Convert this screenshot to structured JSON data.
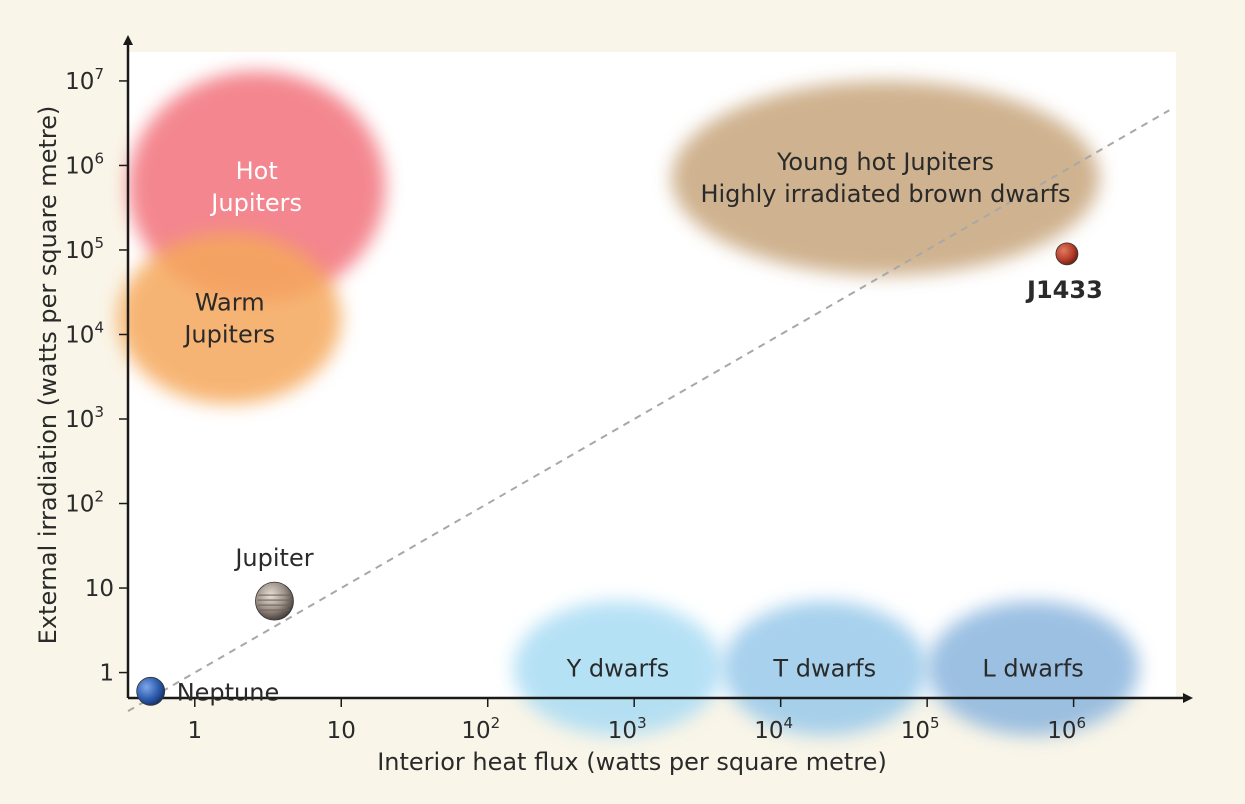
{
  "chart_data": {
    "type": "scatter",
    "x_scale": "log",
    "y_scale": "log",
    "xlabel": "Interior heat flux (watts per square metre)",
    "ylabel": "External irradiation (watts per square metre)",
    "x_ticks": [
      {
        "value": 1,
        "base": "1",
        "exp": ""
      },
      {
        "value": 10,
        "base": "10",
        "exp": ""
      },
      {
        "value": 100,
        "base": "10",
        "exp": "2"
      },
      {
        "value": 1000,
        "base": "10",
        "exp": "3"
      },
      {
        "value": 10000,
        "base": "10",
        "exp": "4"
      },
      {
        "value": 100000,
        "base": "10",
        "exp": "5"
      },
      {
        "value": 1000000,
        "base": "10",
        "exp": "6"
      }
    ],
    "y_ticks": [
      {
        "value": 1,
        "base": "1",
        "exp": ""
      },
      {
        "value": 10,
        "base": "10",
        "exp": ""
      },
      {
        "value": 100,
        "base": "10",
        "exp": "2"
      },
      {
        "value": 1000,
        "base": "10",
        "exp": "3"
      },
      {
        "value": 10000,
        "base": "10",
        "exp": "4"
      },
      {
        "value": 100000,
        "base": "10",
        "exp": "5"
      },
      {
        "value": 1000000,
        "base": "10",
        "exp": "6"
      },
      {
        "value": 10000000,
        "base": "10",
        "exp": "7"
      }
    ],
    "xlim": [
      0.35,
      5000000
    ],
    "ylim": [
      0.5,
      22000000
    ],
    "regions": [
      {
        "name": "hot-jupiters",
        "lines": [
          "Hot",
          "Jupiters"
        ],
        "color": "#f2727c",
        "text_color": "#ffffff",
        "x_range": [
          0.35,
          20
        ],
        "y_range": [
          24000,
          13000000
        ]
      },
      {
        "name": "warm-jupiters",
        "lines": [
          "Warm",
          "Jupiters"
        ],
        "color": "#f5a85c",
        "text_color": "#2a2a2a",
        "x_range": [
          0.3,
          10
        ],
        "y_range": [
          1500,
          160000
        ]
      },
      {
        "name": "young-hot-jupiters",
        "lines": [
          "Young hot Jupiters",
          "Highly irradiated brown dwarfs"
        ],
        "color": "#c7a57c",
        "text_color": "#2a2a2a",
        "x_range": [
          1800,
          1500000
        ],
        "y_range": [
          50000,
          10000000
        ]
      },
      {
        "name": "y-dwarfs",
        "lines": [
          "Y dwarfs"
        ],
        "color": "#a9dcf4",
        "text_color": "#2a2a2a",
        "x_range": [
          150,
          4000
        ],
        "y_range": [
          0.18,
          7
        ]
      },
      {
        "name": "t-dwarfs",
        "lines": [
          "T dwarfs"
        ],
        "color": "#98c9ea",
        "text_color": "#2a2a2a",
        "x_range": [
          4000,
          100000
        ],
        "y_range": [
          0.18,
          7
        ]
      },
      {
        "name": "l-dwarfs",
        "lines": [
          "L dwarfs"
        ],
        "color": "#8bb6de",
        "text_color": "#2a2a2a",
        "x_range": [
          100000,
          2800000
        ],
        "y_range": [
          0.18,
          7
        ]
      }
    ],
    "points": [
      {
        "name": "neptune",
        "label": "Neptune",
        "x": 0.5,
        "y": 0.6,
        "color": "#2f5fb0",
        "label_side": "right",
        "bold": false
      },
      {
        "name": "jupiter",
        "label": "Jupiter",
        "x": 3.5,
        "y": 7,
        "color": "#8a7f78",
        "label_side": "top",
        "bold": false
      },
      {
        "name": "j1433",
        "label": "J1433",
        "x": 900000,
        "y": 90000,
        "color": "#b8402c",
        "label_side": "bottom",
        "bold": true
      }
    ],
    "reference_line": {
      "style": "dashed",
      "from": [
        0.35,
        0.35
      ],
      "to": [
        4500000,
        4500000
      ],
      "color": "#a8a8a8"
    },
    "grid": false
  }
}
